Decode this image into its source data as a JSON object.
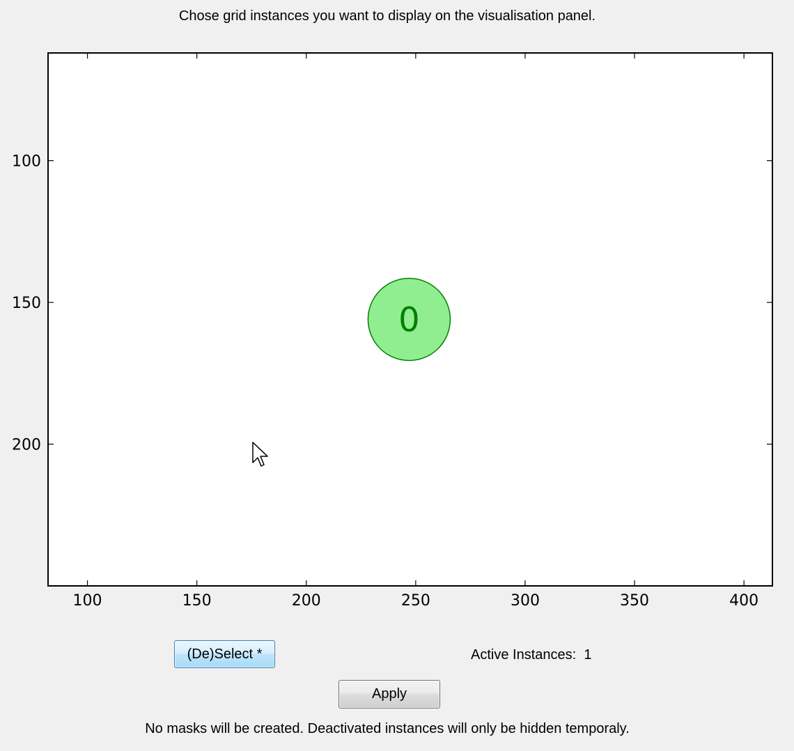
{
  "instruction": "Chose grid instances you want to display on the visualisation panel.",
  "colors": {
    "background": "#f0f0f0",
    "plot_background": "#ffffff",
    "marker_fill": "#90ee90",
    "marker_edge": "#008000",
    "marker_text": "#008000"
  },
  "chart_data": {
    "type": "scatter",
    "title": "",
    "xlabel": "",
    "ylabel": "",
    "xlim": [
      82,
      413
    ],
    "ylim": [
      62,
      250
    ],
    "y_inverted": true,
    "grid": false,
    "x_ticks": [
      100,
      150,
      200,
      250,
      300,
      350,
      400
    ],
    "y_ticks": [
      100,
      150,
      200
    ],
    "x_tick_labels": [
      "100",
      "150",
      "200",
      "250",
      "300",
      "350",
      "400"
    ],
    "y_tick_labels": [
      "100",
      "150",
      "200"
    ],
    "points": [
      {
        "x": 247,
        "y": 156,
        "label": "0",
        "active": true
      }
    ]
  },
  "controls": {
    "deselect_label": "(De)Select *",
    "active_label": "Active Instances:",
    "active_count": "1",
    "apply_label": "Apply"
  },
  "note": "No masks will be created. Deactivated instances will only be hidden temporaly.",
  "cursor_icon": "arrow-cursor-icon"
}
